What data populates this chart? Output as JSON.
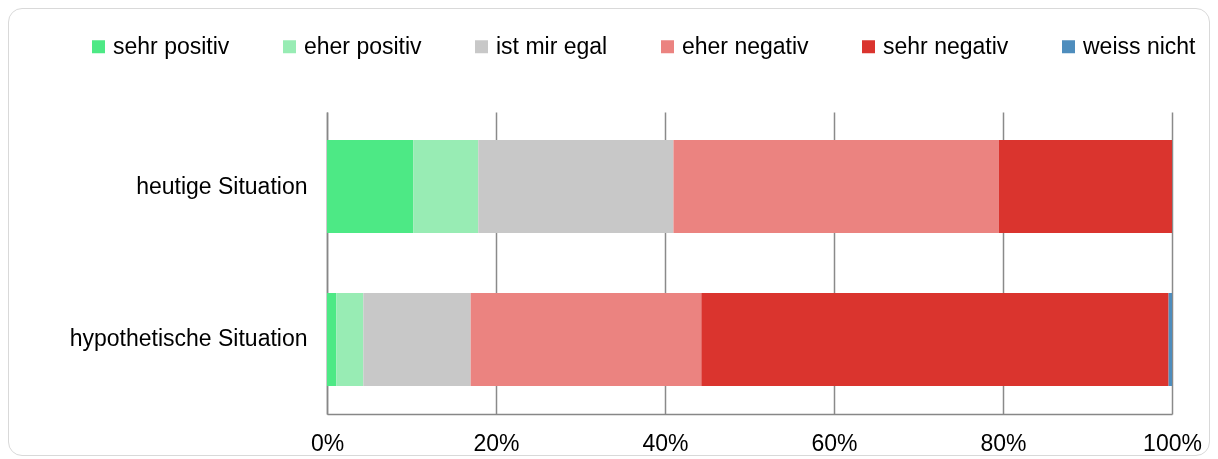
{
  "chart_data": {
    "type": "bar",
    "orientation": "horizontal",
    "stacked": true,
    "categories": [
      "heutige Situation",
      "hypothetische Situation"
    ],
    "series": [
      {
        "name": "sehr positiv",
        "color": "#4de985",
        "values": [
          10.2,
          1.1
        ]
      },
      {
        "name": "eher positiv",
        "color": "#98ecb4",
        "values": [
          7.7,
          3.2
        ]
      },
      {
        "name": "ist mir egal",
        "color": "#c8c8c8",
        "values": [
          23.1,
          12.7
        ]
      },
      {
        "name": "eher negativ",
        "color": "#eb8380",
        "values": [
          38.5,
          27.3
        ]
      },
      {
        "name": "sehr negativ",
        "color": "#da342e",
        "values": [
          20.5,
          55.3
        ]
      },
      {
        "name": "weiss nicht",
        "color": "#4e8dbd",
        "values": [
          null,
          0.4
        ]
      }
    ],
    "xlim": [
      0,
      100
    ],
    "xticks": [
      {
        "value": 0,
        "label": "0%"
      },
      {
        "value": 20,
        "label": "20%"
      },
      {
        "value": 40,
        "label": "40%"
      },
      {
        "value": 60,
        "label": "60%"
      },
      {
        "value": 80,
        "label": "80%"
      },
      {
        "value": 100,
        "label": "100%"
      }
    ],
    "grid": "x",
    "legend": "top"
  }
}
